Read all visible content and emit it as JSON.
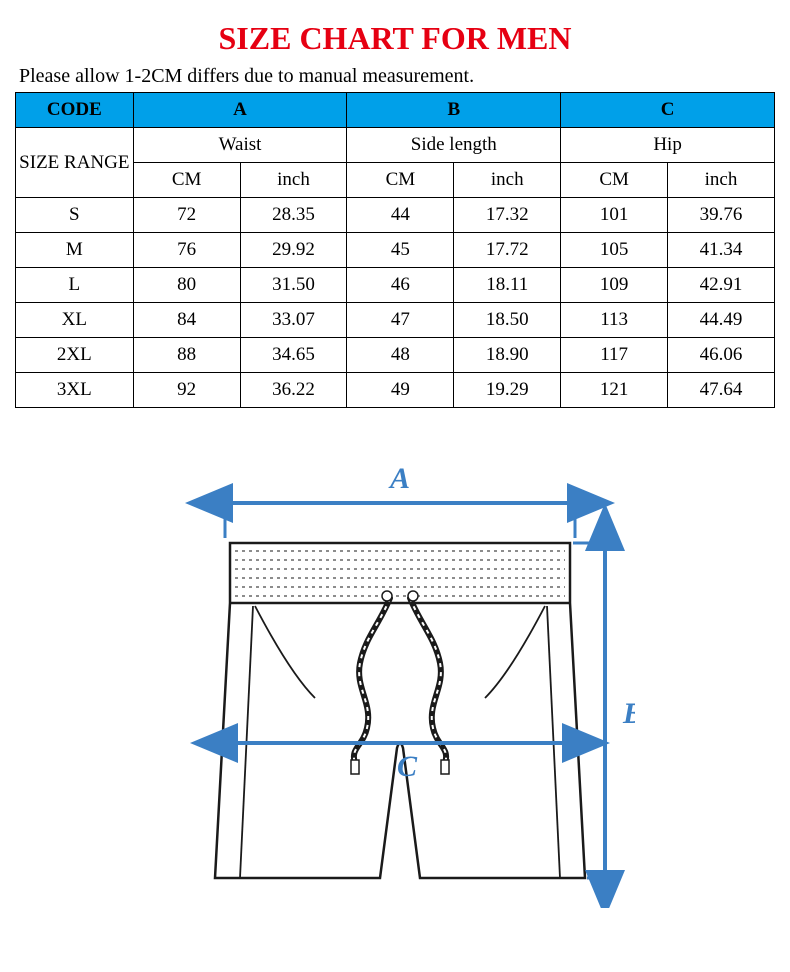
{
  "title": {
    "text": "SIZE CHART FOR MEN",
    "color": "#e60012",
    "fontsize": 32
  },
  "note": "Please allow 1-2CM differs due to manual measurement.",
  "table": {
    "header_bg": "#00a0e9",
    "border_color": "#000000",
    "text_color": "#000000",
    "fontsize": 19,
    "code_header": "CODE",
    "range_header": "SIZE RANGE",
    "groups": [
      {
        "code": "A",
        "label": "Waist"
      },
      {
        "code": "B",
        "label": "Side length"
      },
      {
        "code": "C",
        "label": "Hip"
      }
    ],
    "unit_headers": [
      "CM",
      "inch"
    ],
    "rows": [
      {
        "size": "S",
        "a_cm": "72",
        "a_in": "28.35",
        "b_cm": "44",
        "b_in": "17.32",
        "c_cm": "101",
        "c_in": "39.76"
      },
      {
        "size": "M",
        "a_cm": "76",
        "a_in": "29.92",
        "b_cm": "45",
        "b_in": "17.72",
        "c_cm": "105",
        "c_in": "41.34"
      },
      {
        "size": "L",
        "a_cm": "80",
        "a_in": "31.50",
        "b_cm": "46",
        "b_in": "18.11",
        "c_cm": "109",
        "c_in": "42.91"
      },
      {
        "size": "XL",
        "a_cm": "84",
        "a_in": "33.07",
        "b_cm": "47",
        "b_in": "18.50",
        "c_cm": "113",
        "c_in": "44.49"
      },
      {
        "size": "2XL",
        "a_cm": "88",
        "a_in": "34.65",
        "b_cm": "48",
        "b_in": "18.90",
        "c_cm": "117",
        "c_in": "46.06"
      },
      {
        "size": "3XL",
        "a_cm": "92",
        "a_in": "36.22",
        "b_cm": "49",
        "b_in": "19.29",
        "c_cm": "121",
        "c_in": "47.64"
      }
    ]
  },
  "diagram": {
    "arrow_color": "#3b7fc4",
    "label_color": "#3b7fc4",
    "outline_color": "#1a1a1a",
    "label_fontsize": 30,
    "labels": {
      "a": "A",
      "b": "B",
      "c": "C"
    }
  }
}
